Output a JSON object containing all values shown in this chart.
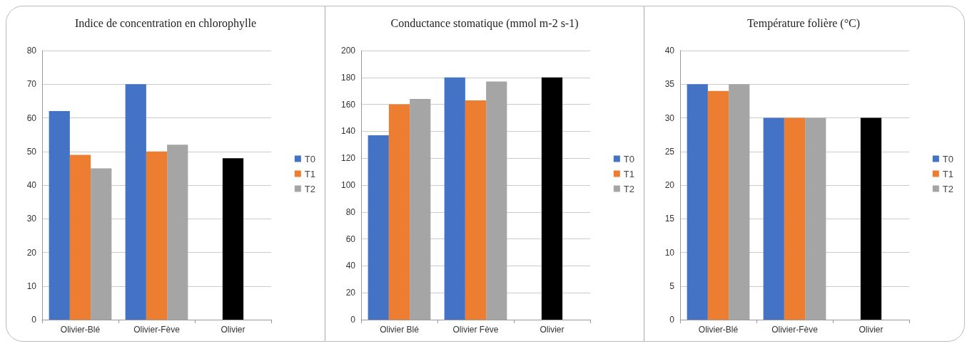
{
  "chart_data": [
    {
      "type": "bar",
      "title": "Indice de concentration en chlorophylle",
      "categories": [
        "Olivier-Blé",
        "Olivier-Fève",
        "Olivier"
      ],
      "ylim": [
        0,
        80
      ],
      "yticks": [
        0,
        10,
        20,
        30,
        40,
        50,
        60,
        70,
        80
      ],
      "grid": "y",
      "legend": "right",
      "series": [
        {
          "name": "T0",
          "color": "#4472c4",
          "values": [
            62,
            70,
            null
          ]
        },
        {
          "name": "T1",
          "color": "#ed7d31",
          "colors": [
            "#ed7d31",
            "#ed7d31",
            "#000000"
          ],
          "values": [
            49,
            50,
            48
          ]
        },
        {
          "name": "T2",
          "color": "#a5a5a5",
          "values": [
            45,
            52,
            null
          ]
        }
      ]
    },
    {
      "type": "bar",
      "title": "Conductance stomatique (mmol m-2 s-1)",
      "categories": [
        "Olivier Blé",
        "Olivier Fève",
        "Olivier"
      ],
      "ylim": [
        0,
        200
      ],
      "yticks": [
        0,
        20,
        40,
        60,
        80,
        100,
        120,
        140,
        160,
        180,
        200
      ],
      "grid": "y",
      "legend": "right",
      "series": [
        {
          "name": "T0",
          "color": "#4472c4",
          "values": [
            137,
            180,
            null
          ]
        },
        {
          "name": "T1",
          "color": "#ed7d31",
          "colors": [
            "#ed7d31",
            "#ed7d31",
            "#000000"
          ],
          "values": [
            160,
            163,
            180
          ]
        },
        {
          "name": "T2",
          "color": "#a5a5a5",
          "values": [
            164,
            177,
            null
          ]
        }
      ]
    },
    {
      "type": "bar",
      "title": "Température folière (°C)",
      "categories": [
        "Olivier-Blé",
        "Olivier-Fève",
        "Olivier"
      ],
      "ylim": [
        0,
        40
      ],
      "yticks": [
        0,
        5,
        10,
        15,
        20,
        25,
        30,
        35,
        40
      ],
      "grid": "y",
      "legend": "right",
      "series": [
        {
          "name": "T0",
          "color": "#4472c4",
          "values": [
            35,
            30,
            null
          ]
        },
        {
          "name": "T1",
          "color": "#ed7d31",
          "colors": [
            "#ed7d31",
            "#ed7d31",
            "#000000"
          ],
          "values": [
            34,
            30,
            30
          ]
        },
        {
          "name": "T2",
          "color": "#a5a5a5",
          "values": [
            35,
            30,
            null
          ]
        }
      ]
    }
  ]
}
